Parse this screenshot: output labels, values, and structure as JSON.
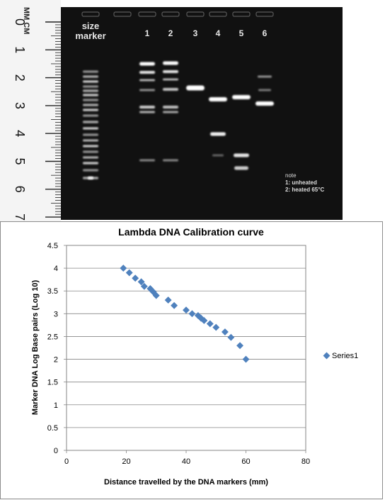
{
  "gel": {
    "ruler_units": "MM CM",
    "ruler_numbers": [
      "0",
      "1",
      "2",
      "3",
      "4",
      "5",
      "6",
      "7"
    ],
    "marker_label_line1": "size",
    "marker_label_line2": "marker",
    "lane_labels": [
      "1",
      "2",
      "3",
      "4",
      "5",
      "6"
    ],
    "note_title": "note",
    "note_line1": "1: unheated",
    "note_line2": "2: heated 65°C"
  },
  "chart_data": {
    "type": "scatter",
    "title": "Lambda DNA Calibration curve",
    "xlabel": "Distance travelled by the DNA markers (mm)",
    "ylabel": "Marker  DNA Log Base pairs  (Log 10)",
    "xlim": [
      0,
      80
    ],
    "ylim": [
      0,
      4.5
    ],
    "xticks": [
      "0",
      "20",
      "40",
      "60",
      "80"
    ],
    "yticks": [
      "0",
      "0.5",
      "1",
      "1.5",
      "2",
      "2.5",
      "3",
      "3.5",
      "4",
      "4.5"
    ],
    "grid": "horizontal",
    "legend_position": "right",
    "marker_color": "#4f81bd",
    "series": [
      {
        "name": "Series1",
        "x": [
          19,
          21,
          23,
          25,
          26,
          28,
          29,
          30,
          34,
          36,
          40,
          42,
          44,
          45,
          46,
          48,
          50,
          53,
          55,
          58,
          60
        ],
        "y": [
          4.0,
          3.9,
          3.78,
          3.7,
          3.6,
          3.55,
          3.48,
          3.4,
          3.3,
          3.18,
          3.08,
          3.0,
          2.96,
          2.9,
          2.85,
          2.78,
          2.7,
          2.6,
          2.48,
          2.3,
          2.0
        ]
      }
    ]
  }
}
